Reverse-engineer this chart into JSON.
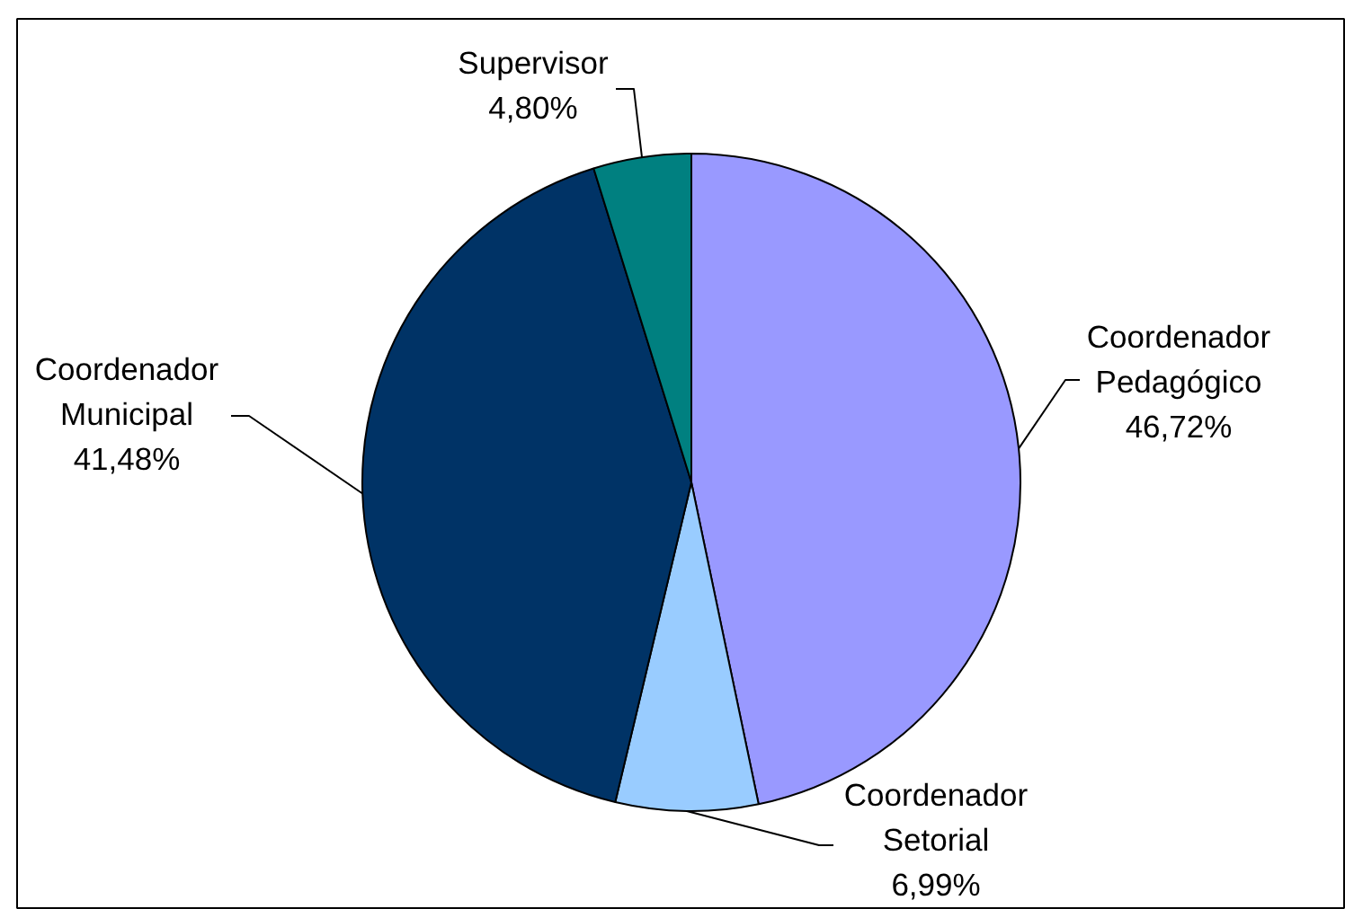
{
  "chart_data": {
    "type": "pie",
    "categories": [
      "Coordenador Pedagógico",
      "Coordenador Setorial",
      "Coordenador Municipal",
      "Supervisor"
    ],
    "values": [
      46.72,
      6.99,
      41.48,
      4.8
    ],
    "colors": [
      "#9999ff",
      "#99ccff",
      "#003366",
      "#008080"
    ],
    "value_labels": [
      "46,72%",
      "6,99%",
      "41,48%",
      "4,80%"
    ]
  }
}
